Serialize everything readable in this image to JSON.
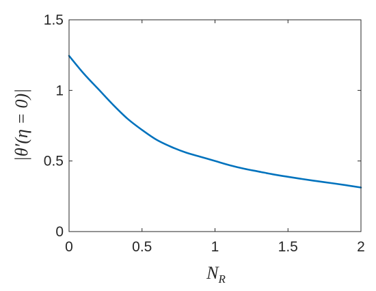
{
  "chart_data": {
    "type": "line",
    "title": "",
    "xlabel_main": "N",
    "xlabel_sub": "R",
    "ylabel": "|θ′(η = 0)|",
    "xlim": [
      0,
      2
    ],
    "ylim": [
      0,
      1.5
    ],
    "grid": false,
    "xticks": [
      0,
      0.5,
      1,
      1.5,
      2
    ],
    "xtick_labels": [
      "0",
      "0.5",
      "1",
      "1.5",
      "2"
    ],
    "yticks": [
      0,
      0.5,
      1,
      1.5
    ],
    "ytick_labels": [
      "0",
      "0.5",
      "1",
      "1.5"
    ],
    "series": [
      {
        "color": "#0072bd",
        "x": [
          0,
          0.1,
          0.2,
          0.3,
          0.4,
          0.5,
          0.6,
          0.7,
          0.8,
          0.9,
          1.0,
          1.1,
          1.2,
          1.3,
          1.4,
          1.5,
          1.6,
          1.7,
          1.8,
          1.9,
          2.0
        ],
        "y": [
          1.245,
          1.12,
          1.01,
          0.9,
          0.8,
          0.72,
          0.65,
          0.6,
          0.56,
          0.53,
          0.5,
          0.47,
          0.445,
          0.425,
          0.405,
          0.388,
          0.372,
          0.357,
          0.343,
          0.328,
          0.312
        ]
      }
    ]
  }
}
